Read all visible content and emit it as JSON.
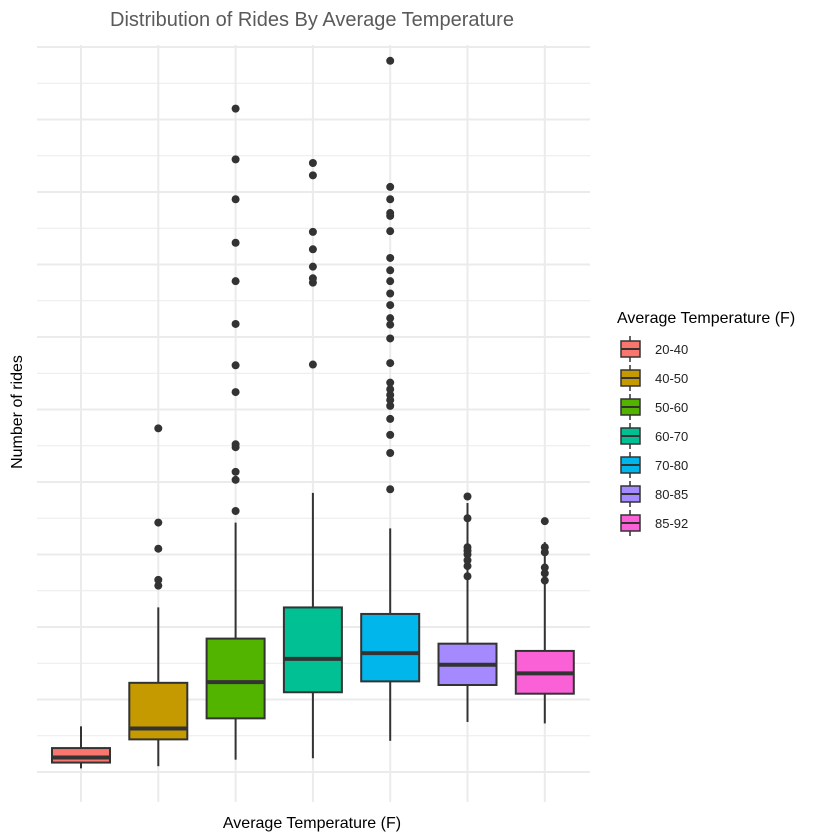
{
  "chart_data": {
    "type": "box",
    "title": "Distribution of Rides By Average Temperature",
    "xlabel": "Average Temperature (F)",
    "ylabel": "Number of rides",
    "ylim": [
      -0.3,
      10.3
    ],
    "grid": true,
    "axis_tick_labels_visible": false,
    "legend": {
      "title": "Average Temperature (F)",
      "position": "right"
    },
    "categories": [
      "20-40",
      "40-50",
      "50-60",
      "60-70",
      "70-80",
      "80-85",
      "85-92"
    ],
    "colors": [
      "#F8766D",
      "#C49A00",
      "#53B400",
      "#00C094",
      "#00B6EB",
      "#A58AFF",
      "#FB61D7"
    ],
    "boxes": [
      {
        "category": "20-40",
        "whisker_low": 0.05,
        "q1": 0.13,
        "median": 0.2,
        "q3": 0.33,
        "whisker_high": 0.63,
        "outliers": []
      },
      {
        "category": "40-50",
        "whisker_low": 0.08,
        "q1": 0.45,
        "median": 0.6,
        "q3": 1.23,
        "whisker_high": 2.27,
        "outliers": [
          2.57,
          2.65,
          3.08,
          3.44,
          4.74
        ]
      },
      {
        "category": "50-60",
        "whisker_low": 0.17,
        "q1": 0.74,
        "median": 1.24,
        "q3": 1.84,
        "whisker_high": 3.44,
        "outliers": [
          3.6,
          4.03,
          4.14,
          4.48,
          4.52,
          5.24,
          5.61,
          6.18,
          6.77,
          7.3,
          7.9,
          8.45,
          9.15
        ]
      },
      {
        "category": "60-70",
        "whisker_low": 0.19,
        "q1": 1.1,
        "median": 1.56,
        "q3": 2.27,
        "whisker_high": 3.85,
        "outliers": [
          5.62,
          6.75,
          6.81,
          6.97,
          7.21,
          7.45,
          8.23,
          8.4
        ]
      },
      {
        "category": "70-80",
        "whisker_low": 0.43,
        "q1": 1.25,
        "median": 1.64,
        "q3": 2.18,
        "whisker_high": 3.36,
        "outliers": [
          3.9,
          4.4,
          4.65,
          4.87,
          5.05,
          5.13,
          5.2,
          5.28,
          5.37,
          5.64,
          5.98,
          6.17,
          6.26,
          6.44,
          6.6,
          6.77,
          6.92,
          7.09,
          7.46,
          7.67,
          7.71,
          7.9,
          8.07,
          9.81
        ]
      },
      {
        "category": "80-85",
        "whisker_low": 0.69,
        "q1": 1.2,
        "median": 1.48,
        "q3": 1.77,
        "whisker_high": 3.71,
        "outliers": [
          2.7,
          2.84,
          2.92,
          3.0,
          3.05,
          3.1,
          3.5,
          3.8
        ]
      },
      {
        "category": "85-92",
        "whisker_low": 0.67,
        "q1": 1.08,
        "median": 1.36,
        "q3": 1.67,
        "whisker_high": 3.17,
        "outliers": [
          2.64,
          2.74,
          2.82,
          3.03,
          3.1,
          3.46
        ]
      }
    ]
  }
}
